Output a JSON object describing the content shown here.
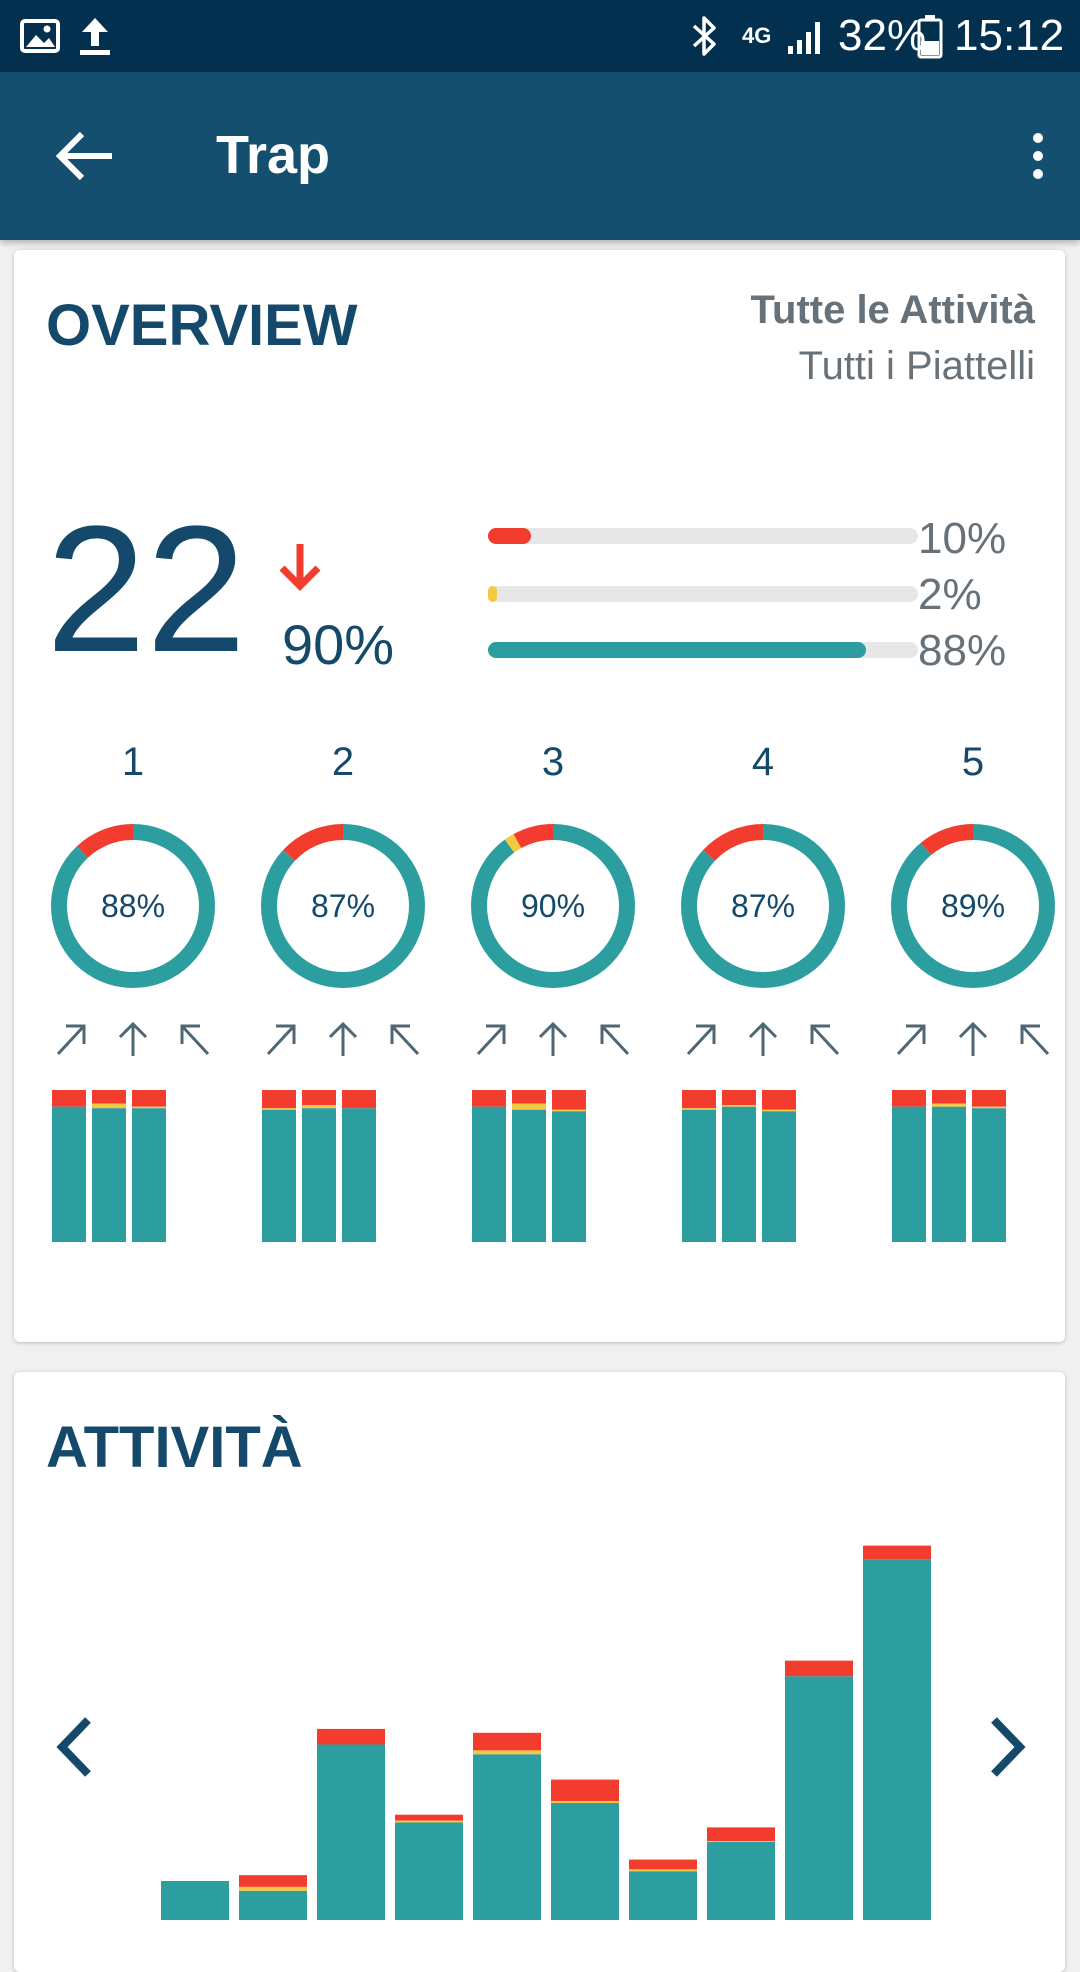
{
  "status_bar": {
    "battery": "32%",
    "time": "15:12",
    "network": "4G"
  },
  "app_bar": {
    "title": "Trap"
  },
  "overview": {
    "title": "OVERVIEW",
    "filter_activity": "Tutte le Attività",
    "filter_targets": "Tutti i Piattelli",
    "score": "22",
    "trend_pct": "90%",
    "progress": [
      {
        "label": "10%",
        "value": 10,
        "color": "#f23d2e"
      },
      {
        "label": "2%",
        "value": 2,
        "color": "#f5c842"
      },
      {
        "label": "88%",
        "value": 88,
        "color": "#2c9ea0"
      }
    ],
    "stands": [
      {
        "number": "1",
        "pct": "88%",
        "hit": 88,
        "yellow": 0,
        "miss": 12,
        "bars": [
          {
            "hit": 89,
            "yellow": 0,
            "miss": 11
          },
          {
            "hit": 88,
            "yellow": 3,
            "miss": 9
          },
          {
            "hit": 88,
            "yellow": 1,
            "miss": 11
          }
        ]
      },
      {
        "number": "2",
        "pct": "87%",
        "hit": 87,
        "yellow": 0,
        "miss": 13,
        "bars": [
          {
            "hit": 87,
            "yellow": 1,
            "miss": 12
          },
          {
            "hit": 88,
            "yellow": 2,
            "miss": 10
          },
          {
            "hit": 88,
            "yellow": 0,
            "miss": 12
          }
        ]
      },
      {
        "number": "3",
        "pct": "90%",
        "hit": 90,
        "yellow": 2,
        "miss": 8,
        "bars": [
          {
            "hit": 89,
            "yellow": 0,
            "miss": 11
          },
          {
            "hit": 87,
            "yellow": 4,
            "miss": 9
          },
          {
            "hit": 86,
            "yellow": 1,
            "miss": 13
          }
        ]
      },
      {
        "number": "4",
        "pct": "87%",
        "hit": 87,
        "yellow": 0,
        "miss": 13,
        "bars": [
          {
            "hit": 87,
            "yellow": 1,
            "miss": 12
          },
          {
            "hit": 89,
            "yellow": 1,
            "miss": 10
          },
          {
            "hit": 86,
            "yellow": 1,
            "miss": 13
          }
        ]
      },
      {
        "number": "5",
        "pct": "89%",
        "hit": 89,
        "yellow": 0,
        "miss": 11,
        "bars": [
          {
            "hit": 89,
            "yellow": 0,
            "miss": 11
          },
          {
            "hit": 89,
            "yellow": 2,
            "miss": 9
          },
          {
            "hit": 88,
            "yellow": 1,
            "miss": 11
          }
        ]
      }
    ]
  },
  "activity": {
    "title": "ATTIVITÀ"
  },
  "chart_data": {
    "type": "bar",
    "stacked": true,
    "series": [
      {
        "name": "",
        "color": "#2c9ea0",
        "values": [
          4,
          3,
          18,
          10,
          17,
          12,
          5,
          8,
          25,
          37
        ]
      },
      {
        "name": "",
        "color": "#f5c842",
        "values": [
          0,
          0.4,
          0,
          0.2,
          0.4,
          0.2,
          0.2,
          0.1,
          0,
          0
        ]
      },
      {
        "name": "",
        "color": "#f23d2e",
        "values": [
          0,
          1.2,
          1.6,
          0.6,
          1.8,
          2.2,
          1.0,
          1.4,
          1.6,
          1.4
        ]
      }
    ],
    "ylim": [
      0,
      40
    ]
  },
  "colors": {
    "primary": "#154f70",
    "hit": "#2c9ea0",
    "miss": "#f23d2e",
    "partial": "#f5c842",
    "text": "#14496b"
  }
}
